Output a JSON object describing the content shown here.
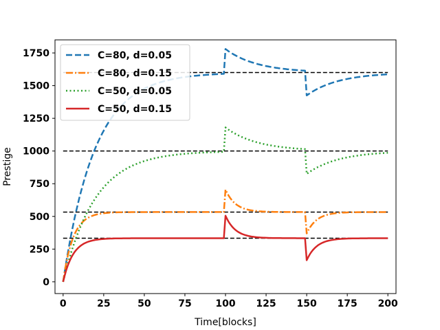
{
  "chart_data": {
    "type": "line",
    "title": "",
    "xlabel": "Time[blocks]",
    "ylabel": "Prestige",
    "xlim": [
      -5,
      205
    ],
    "ylim": [
      -90,
      1850
    ],
    "xticks": [
      0,
      25,
      50,
      75,
      100,
      125,
      150,
      175,
      200
    ],
    "yticks": [
      0,
      250,
      500,
      750,
      1000,
      1250,
      1500,
      1750
    ],
    "grid": false,
    "legend_position": "top-left",
    "equilibria": [
      {
        "value": 1600,
        "color": "#000000"
      },
      {
        "value": 1000,
        "color": "#000000"
      },
      {
        "value": 533,
        "color": "#000000"
      },
      {
        "value": 333,
        "color": "#000000"
      }
    ],
    "equilibrium_x_range": [
      0,
      200
    ],
    "series": [
      {
        "name": "C=80, d=0.05",
        "color": "#1f77b4",
        "style": "dashed",
        "model": {
          "capacity": 80,
          "decay": 0.05,
          "equilibrium": 1600,
          "t_spike": 100,
          "spike_to": 1780,
          "t_drop": 150,
          "drop_to": 1425
        }
      },
      {
        "name": "C=80, d=0.15",
        "color": "#ff7f0e",
        "style": "dashdot",
        "model": {
          "capacity": 80,
          "decay": 0.15,
          "equilibrium": 533,
          "t_spike": 100,
          "spike_to": 705,
          "t_drop": 150,
          "drop_to": 370
        }
      },
      {
        "name": "C=50, d=0.05",
        "color": "#2ca02c",
        "style": "dotted",
        "model": {
          "capacity": 50,
          "decay": 0.05,
          "equilibrium": 1000,
          "t_spike": 100,
          "spike_to": 1180,
          "t_drop": 150,
          "drop_to": 825
        }
      },
      {
        "name": "C=50, d=0.15",
        "color": "#d62728",
        "style": "solid",
        "model": {
          "capacity": 50,
          "decay": 0.15,
          "equilibrium": 333,
          "t_spike": 100,
          "spike_to": 505,
          "t_drop": 150,
          "drop_to": 165
        }
      }
    ]
  }
}
